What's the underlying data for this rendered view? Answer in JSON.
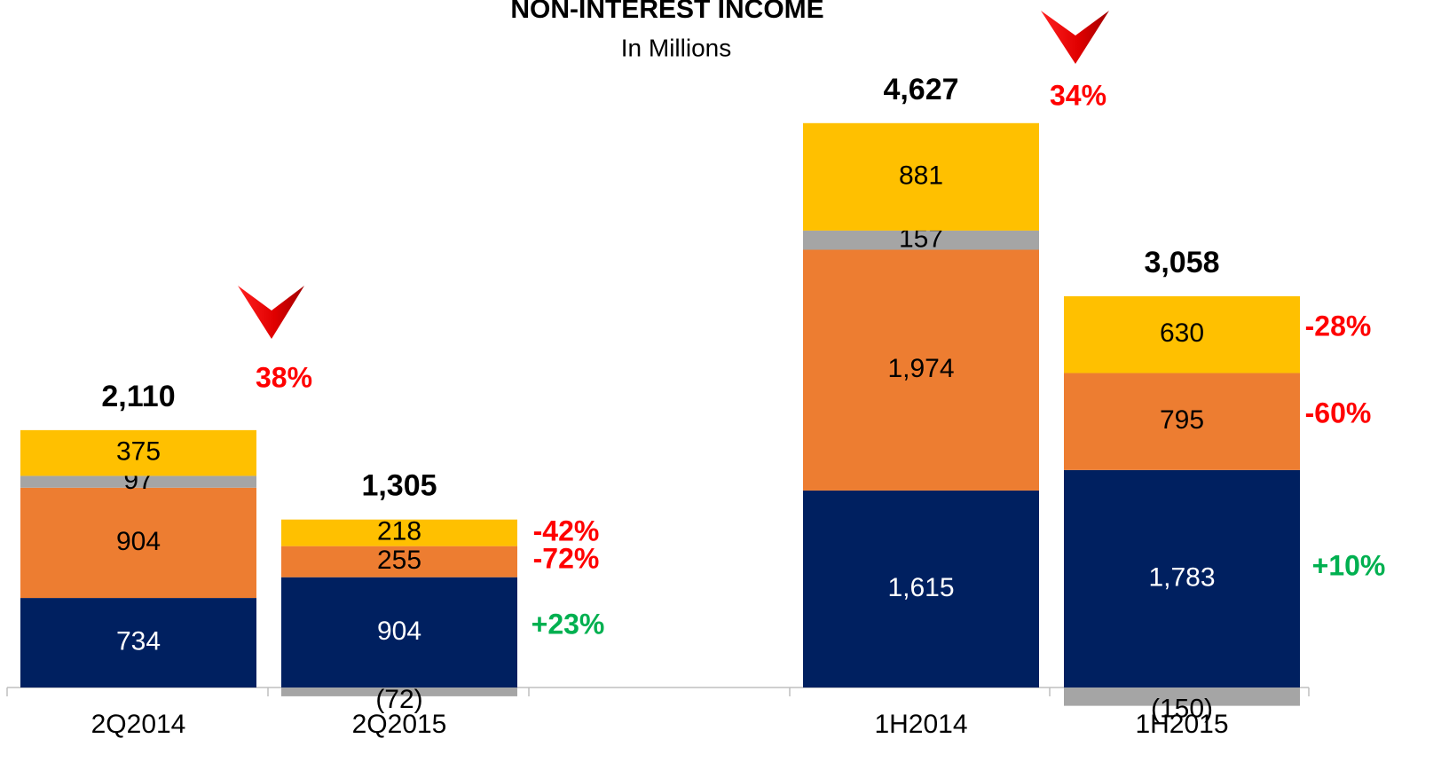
{
  "chart_data": {
    "type": "stacked_bar",
    "title": "NON-INTEREST INCOME",
    "subtitle": "In Millions",
    "categories": [
      "2Q2014",
      "2Q2015",
      null,
      "1H2014",
      "1H2015"
    ],
    "series": [
      {
        "color": "#002060",
        "values": [
          734,
          904,
          null,
          1615,
          1783
        ],
        "value_labels": [
          "734",
          "904",
          null,
          "1,615",
          "1,783"
        ]
      },
      {
        "color": "#ED7D31",
        "values": [
          904,
          255,
          null,
          1974,
          795
        ],
        "value_labels": [
          "904",
          "255",
          null,
          "1,974",
          "795"
        ]
      },
      {
        "color": "#A5A5A5",
        "values": [
          97,
          -72,
          null,
          157,
          -150
        ],
        "value_labels": [
          "97",
          "(72)",
          null,
          "157",
          "(150)"
        ]
      },
      {
        "color": "#FFC000",
        "values": [
          375,
          218,
          null,
          881,
          630
        ],
        "value_labels": [
          "375",
          "218",
          null,
          "881",
          "630"
        ]
      }
    ],
    "totals": [
      2110,
      1305,
      null,
      4627,
      3058
    ],
    "total_labels": [
      "2,110",
      "1,305",
      null,
      "4,627",
      "3,058"
    ],
    "ylim": [
      -300,
      5000
    ],
    "annotations": [
      {
        "text": "38%",
        "color": "#FF0000"
      },
      {
        "text": "34%",
        "color": "#FF0000"
      },
      {
        "text": "-42%",
        "color": "#FF0000"
      },
      {
        "text": "-72%",
        "color": "#FF0000"
      },
      {
        "text": "+23%",
        "color": "#00B050"
      },
      {
        "text": "-28%",
        "color": "#FF0000"
      },
      {
        "text": "-60%",
        "color": "#FF0000"
      },
      {
        "text": "+10%",
        "color": "#00B050"
      }
    ]
  }
}
